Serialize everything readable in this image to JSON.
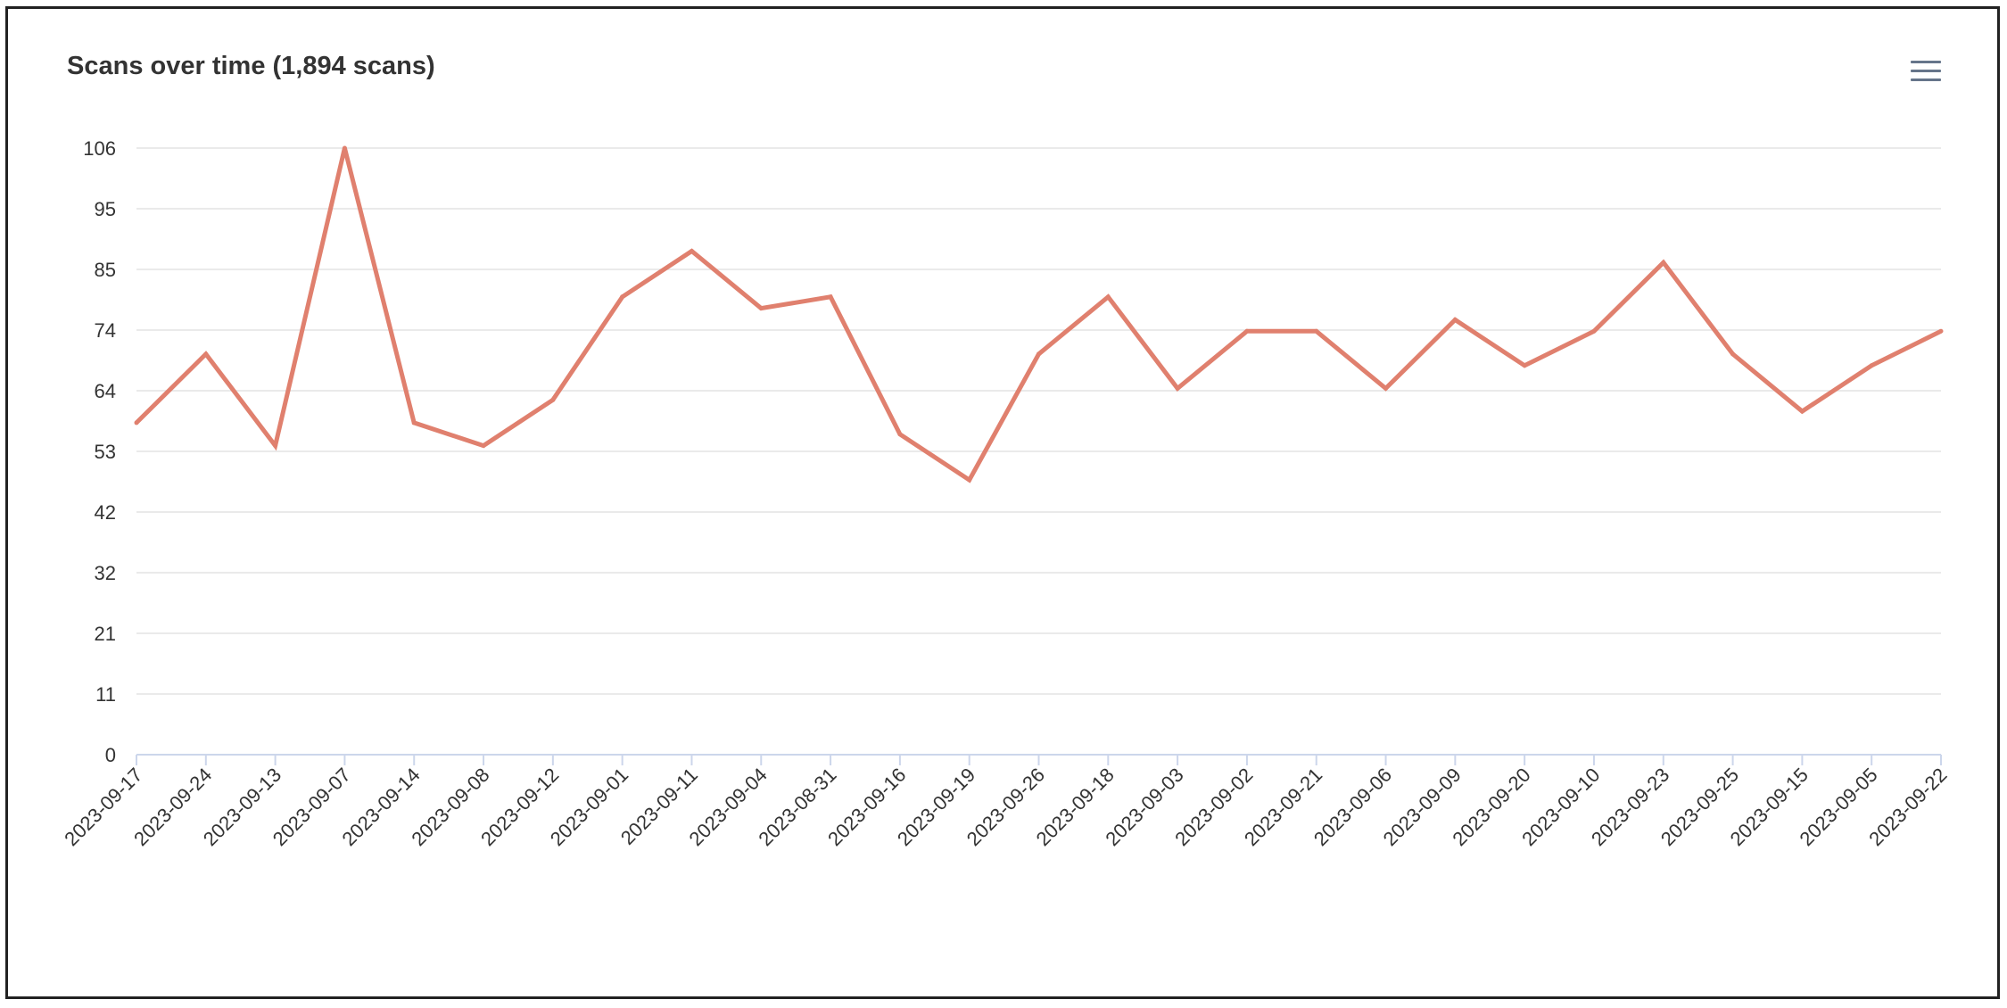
{
  "header": {
    "title": "Scans over time (1,894 scans)",
    "menu_icon": "hamburger-menu-icon"
  },
  "colors": {
    "line": "#e0806e",
    "grid": "#e3e3e3",
    "axis": "#ccd6eb",
    "text": "#333333"
  },
  "chart_data": {
    "type": "line",
    "title": "Scans over time (1,894 scans)",
    "xlabel": "",
    "ylabel": "",
    "categories": [
      "2023-09-17",
      "2023-09-24",
      "2023-09-13",
      "2023-09-07",
      "2023-09-14",
      "2023-09-08",
      "2023-09-12",
      "2023-09-01",
      "2023-09-11",
      "2023-09-04",
      "2023-08-31",
      "2023-09-16",
      "2023-09-19",
      "2023-09-26",
      "2023-09-18",
      "2023-09-03",
      "2023-09-02",
      "2023-09-21",
      "2023-09-06",
      "2023-09-09",
      "2023-09-20",
      "2023-09-10",
      "2023-09-23",
      "2023-09-25",
      "2023-09-15",
      "2023-09-05",
      "2023-09-22"
    ],
    "yticks": [
      "0",
      "11",
      "21",
      "32",
      "42",
      "53",
      "64",
      "74",
      "85",
      "95",
      "106"
    ],
    "ylim": [
      0,
      106
    ],
    "grid": true,
    "legend": false,
    "series": [
      {
        "values": [
          58,
          70,
          54,
          106,
          58,
          54,
          62,
          80,
          88,
          78,
          80,
          56,
          48,
          70,
          80,
          64,
          74,
          74,
          64,
          76,
          68,
          74,
          86,
          70,
          60,
          68,
          74
        ]
      }
    ]
  }
}
